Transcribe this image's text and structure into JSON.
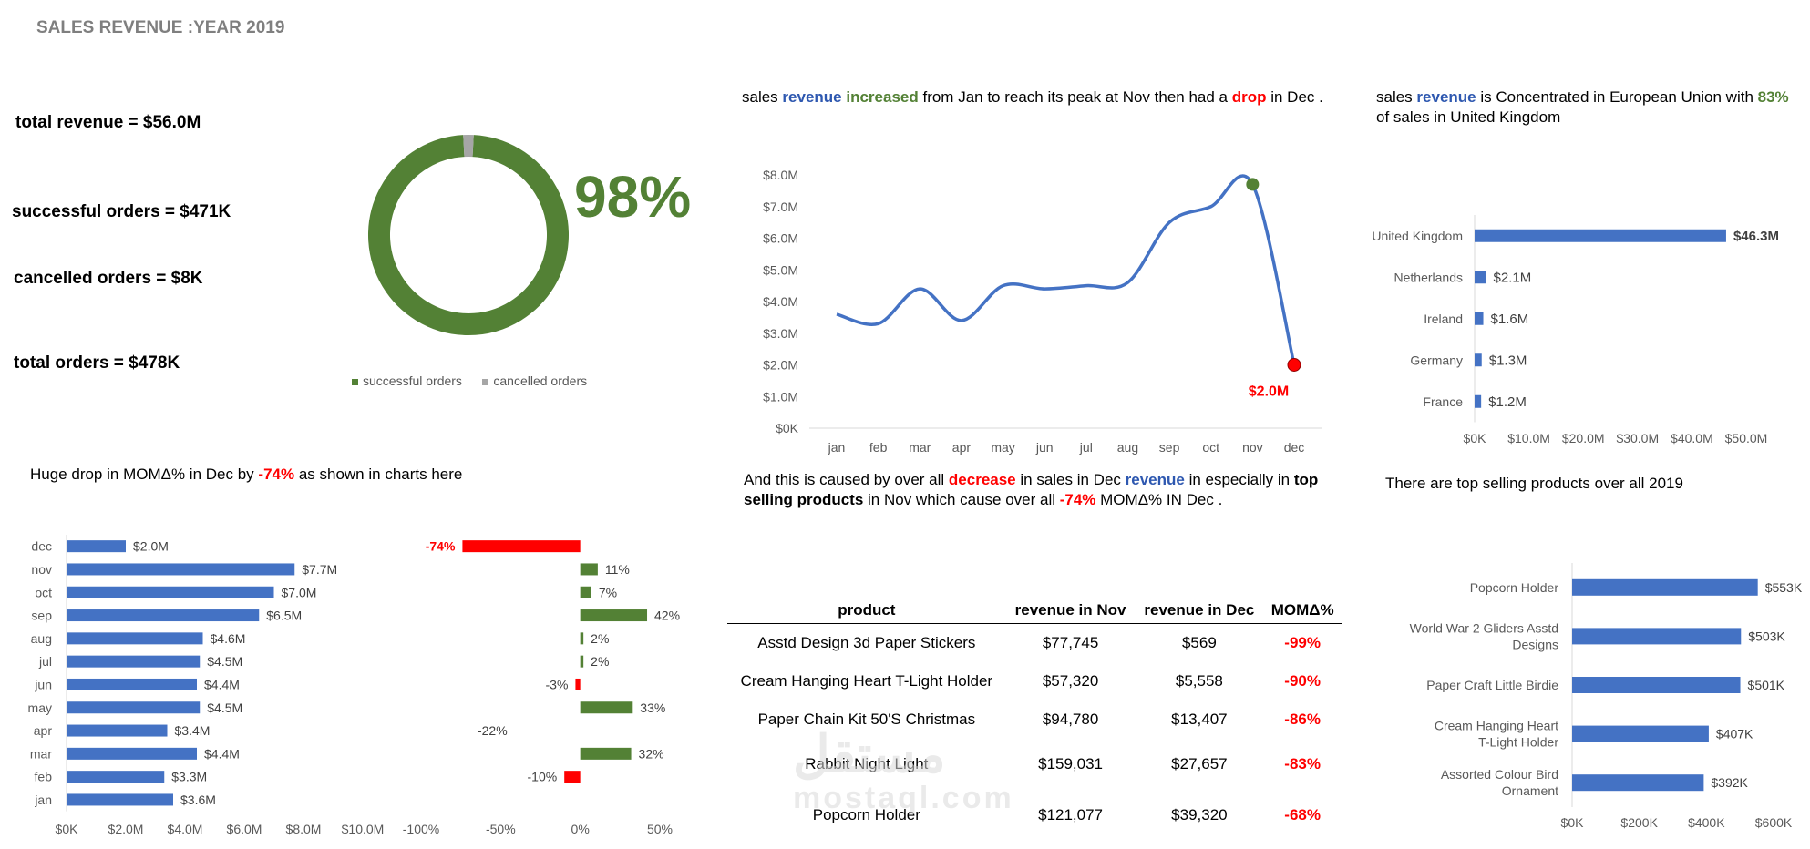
{
  "title": "SALES REVENUE :YEAR 2019",
  "kpis": {
    "total_revenue": "total revenue = $56.0M",
    "successful_orders": "successful orders = $471K",
    "cancelled_orders": "cancelled orders = $8K",
    "total_orders": "total orders =  $478K"
  },
  "colors": {
    "green": "#538135",
    "blue": "#4472c4",
    "red": "#ff0000",
    "grey": "#a6a6a6"
  },
  "notes": {
    "trend": [
      "sales ",
      "revenue",
      " ",
      "increased",
      " from Jan to reach its peak at Nov then had a ",
      "drop",
      " in Dec ."
    ],
    "region": [
      "sales ",
      "revenue",
      " is Concentrated in European Union  with ",
      "83%",
      " of sales in United Kingdom"
    ],
    "mom": [
      "Huge drop in MOMΔ% in Dec by ",
      "-74%",
      " as shown in charts here"
    ],
    "cause": [
      "And this is caused by over all ",
      "decrease",
      " in sales in Dec ",
      "revenue",
      " in especially in ",
      "top selling products",
      " in Nov  which cause over all ",
      "-74%",
      " MOMΔ% IN Dec ."
    ],
    "top": "There are top selling products over all 2019"
  },
  "table": {
    "headers": [
      "product",
      "revenue in Nov",
      "revenue in Dec",
      "MOMΔ%"
    ],
    "rows": [
      [
        "Asstd Design 3d Paper Stickers",
        "$77,745",
        "$569",
        "-99%"
      ],
      [
        "Cream Hanging Heart T-Light Holder",
        "$57,320",
        "$5,558",
        "-90%"
      ],
      [
        "Paper Chain Kit 50'S Christmas",
        "$94,780",
        "$13,407",
        "-86%"
      ],
      [
        "Rabbit Night Light",
        "$159,031",
        "$27,657",
        "-83%"
      ],
      [
        "Popcorn Holder",
        "$121,077",
        "$39,320",
        "-68%"
      ]
    ]
  },
  "watermark": {
    "ar": "مستقل",
    "en": "mostaql.com"
  },
  "chart_data": [
    {
      "id": "donut",
      "type": "pie",
      "categories": [
        "successful orders",
        "cancelled orders"
      ],
      "values": [
        471,
        8
      ],
      "center_label": "98%",
      "legend": [
        "successful orders",
        "cancelled orders"
      ]
    },
    {
      "id": "monthly",
      "type": "line",
      "x": [
        "jan",
        "feb",
        "mar",
        "apr",
        "may",
        "jun",
        "jul",
        "aug",
        "sep",
        "oct",
        "nov",
        "dec"
      ],
      "values": [
        3.6,
        3.3,
        4.4,
        3.4,
        4.5,
        4.4,
        4.5,
        4.6,
        6.5,
        7.0,
        7.7,
        2.0
      ],
      "yticks": [
        "$0K",
        "$1.0M",
        "$2.0M",
        "$3.0M",
        "$4.0M",
        "$5.0M",
        "$6.0M",
        "$7.0M",
        "$8.0M"
      ],
      "ylim": [
        0,
        8
      ],
      "annotation": "$2.0M"
    },
    {
      "id": "countries",
      "type": "bar",
      "categories": [
        "United Kingdom",
        "Netherlands",
        "Ireland",
        "Germany",
        "France"
      ],
      "values": [
        46.3,
        2.1,
        1.6,
        1.3,
        1.2
      ],
      "labels": [
        "$46.3M",
        "$2.1M",
        "$1.6M",
        "$1.3M",
        "$1.2M"
      ],
      "xticks": [
        "$0K",
        "$10.0M",
        "$20.0M",
        "$30.0M",
        "$40.0M",
        "$50.0M"
      ],
      "xlim": [
        0,
        50
      ]
    },
    {
      "id": "monthly_bars",
      "type": "bar",
      "categories": [
        "dec",
        "nov",
        "oct",
        "sep",
        "aug",
        "jul",
        "jun",
        "may",
        "apr",
        "mar",
        "feb",
        "jan"
      ],
      "values": [
        2.0,
        7.7,
        7.0,
        6.5,
        4.6,
        4.5,
        4.4,
        4.5,
        3.4,
        4.4,
        3.3,
        3.6
      ],
      "labels": [
        "$2.0M",
        "$7.7M",
        "$7.0M",
        "$6.5M",
        "$4.6M",
        "$4.5M",
        "$4.4M",
        "$4.5M",
        "$3.4M",
        "$4.4M",
        "$3.3M",
        "$3.6M"
      ],
      "xticks": [
        "$0K",
        "$2.0M",
        "$4.0M",
        "$6.0M",
        "$8.0M",
        "$10.0M"
      ],
      "xlim": [
        0,
        10
      ]
    },
    {
      "id": "mom",
      "type": "bar",
      "categories": [
        "dec",
        "nov",
        "oct",
        "sep",
        "aug",
        "jul",
        "jun",
        "may",
        "apr",
        "mar",
        "feb"
      ],
      "values": [
        -74,
        11,
        7,
        42,
        2,
        2,
        -3,
        33,
        -22,
        32,
        -10
      ],
      "labels": [
        "-74%",
        "11%",
        "7%",
        "42%",
        "2%",
        "2%",
        "-3%",
        "33%",
        "-22%",
        "32%",
        "-10%"
      ],
      "xticks": [
        "-100%",
        "-50%",
        "0%",
        "50%"
      ],
      "xlim": [
        -100,
        50
      ]
    },
    {
      "id": "products",
      "type": "bar",
      "categories": [
        "Popcorn Holder",
        "World War 2 Gliders Asstd Designs",
        "Paper Craft Little Birdie",
        "Cream Hanging Heart T-Light Holder",
        "Assorted Colour Bird Ornament"
      ],
      "values": [
        553,
        503,
        501,
        407,
        392
      ],
      "labels": [
        "$553K",
        "$503K",
        "$501K",
        "$407K",
        "$392K"
      ],
      "xticks": [
        "$0K",
        "$200K",
        "$400K",
        "$600K"
      ],
      "xlim": [
        0,
        600
      ]
    }
  ]
}
